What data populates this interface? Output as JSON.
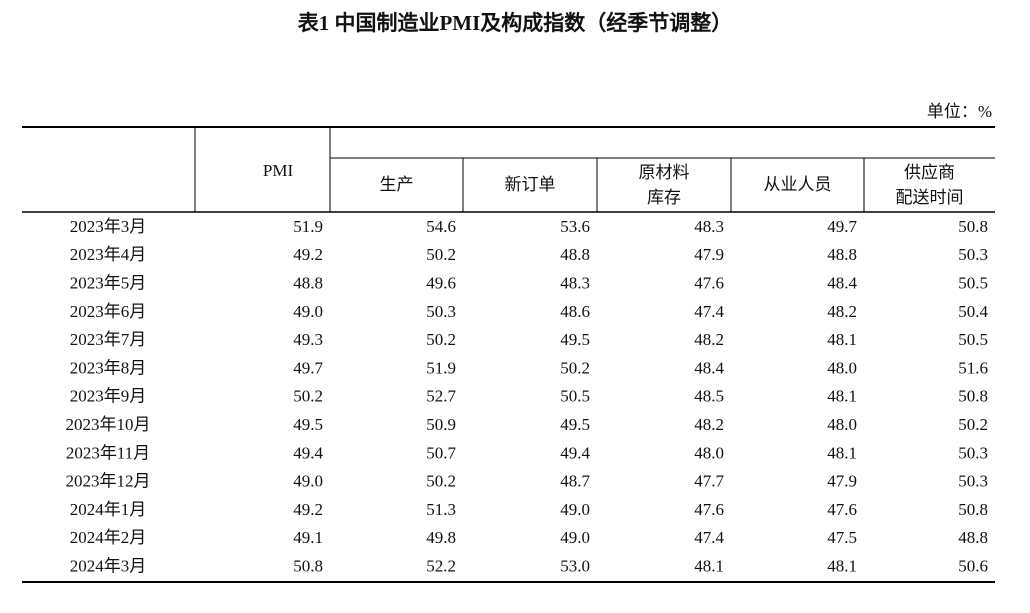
{
  "title": "表1 中国制造业PMI及构成指数（经季节调整）",
  "unit": "单位：%",
  "table": {
    "header": {
      "pmi": "PMI",
      "sub": [
        [
          "生产"
        ],
        [
          "新订单"
        ],
        [
          "原材料",
          "库存"
        ],
        [
          "从业人员"
        ],
        [
          "供应商",
          "配送时间"
        ]
      ]
    },
    "rows": [
      [
        "2023年3月",
        "51.9",
        "54.6",
        "53.6",
        "48.3",
        "49.7",
        "50.8"
      ],
      [
        "2023年4月",
        "49.2",
        "50.2",
        "48.8",
        "47.9",
        "48.8",
        "50.3"
      ],
      [
        "2023年5月",
        "48.8",
        "49.6",
        "48.3",
        "47.6",
        "48.4",
        "50.5"
      ],
      [
        "2023年6月",
        "49.0",
        "50.3",
        "48.6",
        "47.4",
        "48.2",
        "50.4"
      ],
      [
        "2023年7月",
        "49.3",
        "50.2",
        "49.5",
        "48.2",
        "48.1",
        "50.5"
      ],
      [
        "2023年8月",
        "49.7",
        "51.9",
        "50.2",
        "48.4",
        "48.0",
        "51.6"
      ],
      [
        "2023年9月",
        "50.2",
        "52.7",
        "50.5",
        "48.5",
        "48.1",
        "50.8"
      ],
      [
        "2023年10月",
        "49.5",
        "50.9",
        "49.5",
        "48.2",
        "48.0",
        "50.2"
      ],
      [
        "2023年11月",
        "49.4",
        "50.7",
        "49.4",
        "48.0",
        "48.1",
        "50.3"
      ],
      [
        "2023年12月",
        "49.0",
        "50.2",
        "48.7",
        "47.7",
        "47.9",
        "50.3"
      ],
      [
        "2024年1月",
        "49.2",
        "51.3",
        "49.0",
        "47.6",
        "47.6",
        "50.8"
      ],
      [
        "2024年2月",
        "49.1",
        "49.8",
        "49.0",
        "47.4",
        "47.5",
        "48.8"
      ],
      [
        "2024年3月",
        "50.8",
        "52.2",
        "53.0",
        "48.1",
        "48.1",
        "50.6"
      ]
    ]
  }
}
